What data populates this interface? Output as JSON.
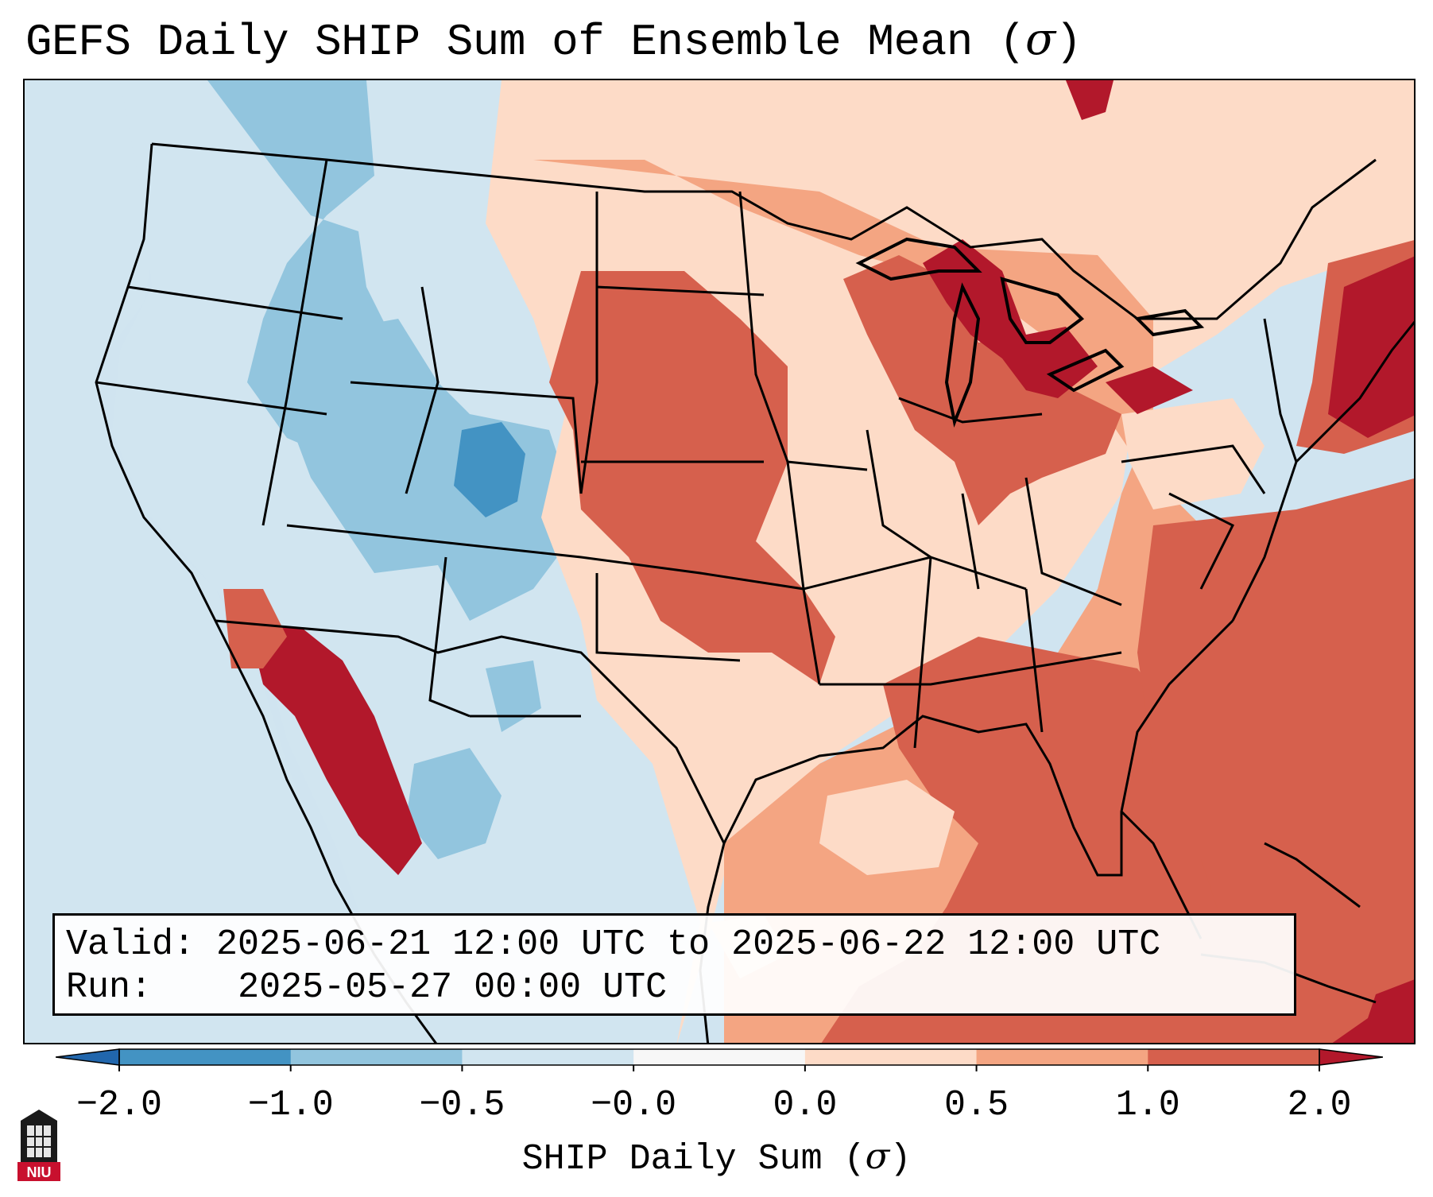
{
  "title": {
    "text": "GEFS Daily SHIP Sum of Ensemble Mean (",
    "sigma": "σ",
    "close": ")"
  },
  "info": {
    "valid_label": "Valid:",
    "valid_value": "2025-06-21 12:00 UTC to 2025-06-22 12:00 UTC",
    "run_label": "Run:",
    "run_value": "2025-05-27 00:00 UTC"
  },
  "colorbar": {
    "label_text": "SHIP Daily Sum (",
    "label_sigma": "σ",
    "label_close": ")",
    "ticks": [
      "−2.0",
      "−1.0",
      "−0.5",
      "−0.0",
      "0.0",
      "0.5",
      "1.0",
      "2.0"
    ],
    "bins": [
      {
        "from": -2.0,
        "to": -1.0,
        "color": "#4393c3"
      },
      {
        "from": -1.0,
        "to": -0.5,
        "color": "#92c5de"
      },
      {
        "from": -0.5,
        "to": -0.0,
        "color": "#d1e5f0"
      },
      {
        "from": -0.0,
        "to": 0.0,
        "color": "#f7f7f7"
      },
      {
        "from": 0.0,
        "to": 0.5,
        "color": "#fddbc7"
      },
      {
        "from": 0.5,
        "to": 1.0,
        "color": "#f4a582"
      },
      {
        "from": 1.0,
        "to": 2.0,
        "color": "#d6604d"
      }
    ],
    "under_color": "#2166ac",
    "over_color": "#b2182b"
  },
  "map": {
    "colors": {
      "ocean_bg": "#d0e4f0",
      "outside": "#ffffff",
      "light_blue": "#d1e5f0",
      "mid_blue": "#92c5de",
      "dark_blue": "#4393c3",
      "light_red": "#fddbc7",
      "mid_red": "#f4a582",
      "red": "#d6604d",
      "dark_red": "#b2182b",
      "lines": "#000000"
    }
  },
  "logo": {
    "text": "NIU",
    "color": "#c8102e"
  }
}
